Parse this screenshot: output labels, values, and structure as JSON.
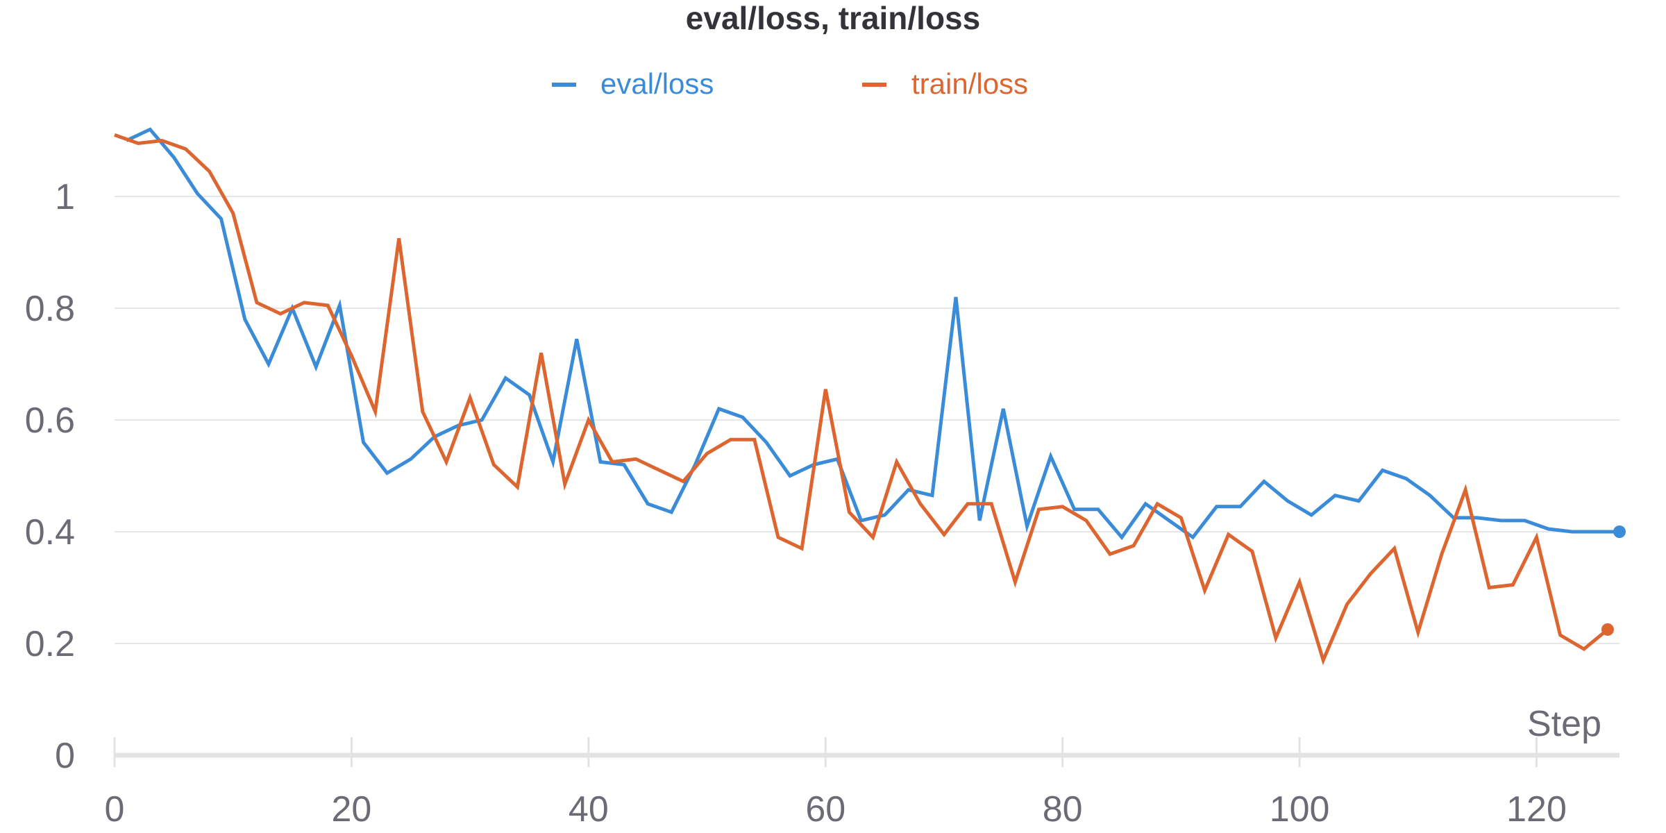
{
  "chart_data": {
    "type": "line",
    "title": "eval/loss, train/loss",
    "xlabel": "Step",
    "ylabel": "",
    "xlim": [
      0,
      127
    ],
    "ylim": [
      0,
      1.13
    ],
    "x_ticks": [
      "0",
      "20",
      "40",
      "60",
      "80",
      "100",
      "120"
    ],
    "y_ticks": [
      "0",
      "0.2",
      "0.4",
      "0.6",
      "0.8",
      "1"
    ],
    "grid": true,
    "legend_position": "top-center",
    "series": [
      {
        "name": "eval/loss",
        "color": "#3a8bd8",
        "endpoint_marker": true,
        "points": [
          [
            1,
            1.1
          ],
          [
            3,
            1.12
          ],
          [
            5,
            1.07
          ],
          [
            7,
            1.005
          ],
          [
            9,
            0.96
          ],
          [
            11,
            0.78
          ],
          [
            13,
            0.7
          ],
          [
            15,
            0.8
          ],
          [
            17,
            0.695
          ],
          [
            19,
            0.805
          ],
          [
            21,
            0.56
          ],
          [
            23,
            0.505
          ],
          [
            25,
            0.53
          ],
          [
            27,
            0.57
          ],
          [
            29,
            0.59
          ],
          [
            31,
            0.6
          ],
          [
            33,
            0.675
          ],
          [
            35,
            0.645
          ],
          [
            37,
            0.525
          ],
          [
            39,
            0.745
          ],
          [
            41,
            0.525
          ],
          [
            43,
            0.52
          ],
          [
            45,
            0.45
          ],
          [
            47,
            0.435
          ],
          [
            49,
            0.52
          ],
          [
            51,
            0.62
          ],
          [
            53,
            0.605
          ],
          [
            55,
            0.56
          ],
          [
            57,
            0.5
          ],
          [
            59,
            0.52
          ],
          [
            61,
            0.53
          ],
          [
            63,
            0.42
          ],
          [
            65,
            0.43
          ],
          [
            67,
            0.475
          ],
          [
            69,
            0.465
          ],
          [
            71,
            0.82
          ],
          [
            73,
            0.42
          ],
          [
            75,
            0.62
          ],
          [
            77,
            0.41
          ],
          [
            79,
            0.535
          ],
          [
            81,
            0.44
          ],
          [
            83,
            0.44
          ],
          [
            85,
            0.39
          ],
          [
            87,
            0.45
          ],
          [
            89,
            0.42
          ],
          [
            91,
            0.39
          ],
          [
            93,
            0.445
          ],
          [
            95,
            0.445
          ],
          [
            97,
            0.49
          ],
          [
            99,
            0.455
          ],
          [
            101,
            0.43
          ],
          [
            103,
            0.465
          ],
          [
            105,
            0.455
          ],
          [
            107,
            0.51
          ],
          [
            109,
            0.495
          ],
          [
            111,
            0.465
          ],
          [
            113,
            0.425
          ],
          [
            115,
            0.425
          ],
          [
            117,
            0.42
          ],
          [
            119,
            0.42
          ],
          [
            121,
            0.405
          ],
          [
            123,
            0.4
          ],
          [
            125,
            0.4
          ],
          [
            127,
            0.4
          ]
        ]
      },
      {
        "name": "train/loss",
        "color": "#dd6530",
        "endpoint_marker": true,
        "points": [
          [
            0,
            1.11
          ],
          [
            2,
            1.095
          ],
          [
            4,
            1.1
          ],
          [
            6,
            1.085
          ],
          [
            8,
            1.045
          ],
          [
            10,
            0.97
          ],
          [
            12,
            0.81
          ],
          [
            14,
            0.79
          ],
          [
            16,
            0.81
          ],
          [
            18,
            0.805
          ],
          [
            20,
            0.715
          ],
          [
            22,
            0.615
          ],
          [
            24,
            0.925
          ],
          [
            26,
            0.615
          ],
          [
            28,
            0.525
          ],
          [
            30,
            0.64
          ],
          [
            32,
            0.52
          ],
          [
            34,
            0.48
          ],
          [
            36,
            0.72
          ],
          [
            38,
            0.485
          ],
          [
            40,
            0.6
          ],
          [
            42,
            0.525
          ],
          [
            44,
            0.53
          ],
          [
            46,
            0.51
          ],
          [
            48,
            0.49
          ],
          [
            50,
            0.54
          ],
          [
            52,
            0.565
          ],
          [
            54,
            0.565
          ],
          [
            56,
            0.39
          ],
          [
            58,
            0.37
          ],
          [
            60,
            0.655
          ],
          [
            62,
            0.435
          ],
          [
            64,
            0.39
          ],
          [
            66,
            0.525
          ],
          [
            68,
            0.45
          ],
          [
            70,
            0.395
          ],
          [
            72,
            0.45
          ],
          [
            74,
            0.45
          ],
          [
            76,
            0.31
          ],
          [
            78,
            0.44
          ],
          [
            80,
            0.445
          ],
          [
            82,
            0.42
          ],
          [
            84,
            0.36
          ],
          [
            86,
            0.375
          ],
          [
            88,
            0.45
          ],
          [
            90,
            0.425
          ],
          [
            92,
            0.295
          ],
          [
            94,
            0.395
          ],
          [
            96,
            0.365
          ],
          [
            98,
            0.21
          ],
          [
            100,
            0.31
          ],
          [
            102,
            0.17
          ],
          [
            104,
            0.27
          ],
          [
            106,
            0.325
          ],
          [
            108,
            0.37
          ],
          [
            110,
            0.22
          ],
          [
            112,
            0.36
          ],
          [
            114,
            0.475
          ],
          [
            116,
            0.3
          ],
          [
            118,
            0.305
          ],
          [
            120,
            0.39
          ],
          [
            122,
            0.215
          ],
          [
            124,
            0.19
          ],
          [
            126,
            0.225
          ]
        ]
      }
    ]
  }
}
